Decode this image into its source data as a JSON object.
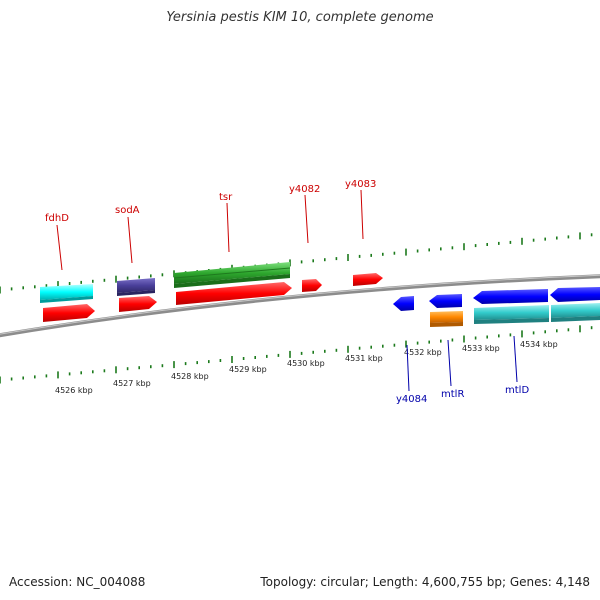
{
  "title": "Yersinia pestis KIM 10, complete genome",
  "footer": {
    "accession": "Accession: NC_004088",
    "topology": "Topology: circular; Length: 4,600,755 bp; Genes: 4,148"
  },
  "colors": {
    "backbone": "#8c8c8c",
    "ticks": "#1c7a1c",
    "tick_label": "#222222",
    "forward_label": "#cc0000",
    "reverse_label": "#0000aa"
  },
  "scale": {
    "unit": "kbp",
    "labels": [
      "4526 kbp",
      "4527 kbp",
      "4528 kbp",
      "4529 kbp",
      "4530 kbp",
      "4531 kbp",
      "4532 kbp",
      "4533 kbp",
      "4534 kbp"
    ]
  },
  "features": {
    "forward": [
      {
        "name": "fdhD",
        "color": "#ff0000"
      },
      {
        "name": "sodA",
        "color": "#ff0000"
      },
      {
        "name": "tsr",
        "color": "#ff0000"
      },
      {
        "name": "y4082",
        "color": "#ff0000"
      },
      {
        "name": "y4083",
        "color": "#ff0000"
      }
    ],
    "reverse": [
      {
        "name": "y4084",
        "color": "#0000ff"
      },
      {
        "name": "mtlR",
        "color": "#0000ff"
      },
      {
        "name": "mtlD",
        "color": "#0000ff"
      }
    ],
    "other_tracks": [
      {
        "id": "cyan-fdhD",
        "color": "#00ffff"
      },
      {
        "id": "purple-sodA",
        "color": "#4a3f9a"
      },
      {
        "id": "green-tsr",
        "color": "#2ea82e"
      },
      {
        "id": "orange-mtlR",
        "color": "#ff8800"
      },
      {
        "id": "cyan-mtlD",
        "color": "#33cccc"
      }
    ]
  }
}
